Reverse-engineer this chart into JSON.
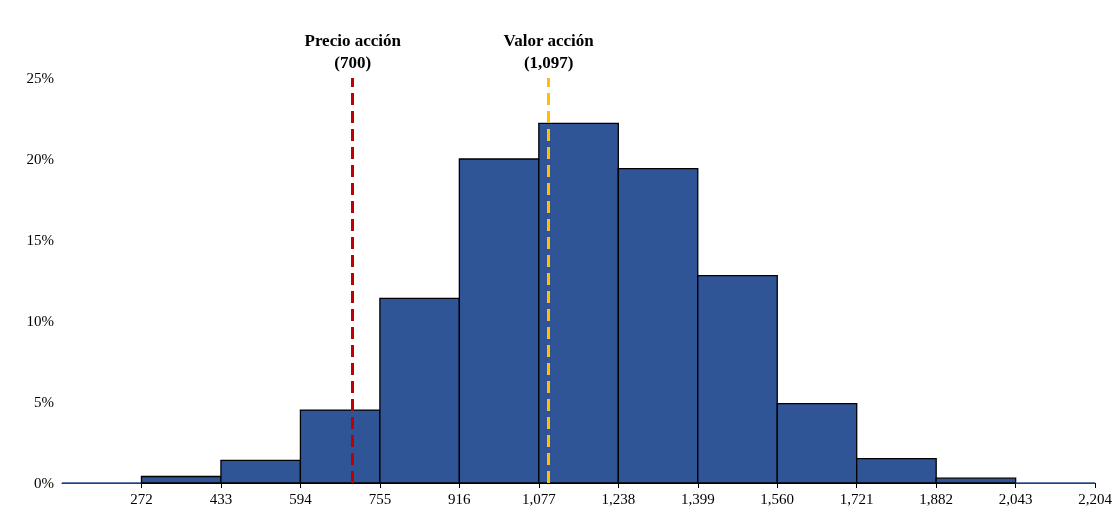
{
  "chart_data": {
    "type": "histogram",
    "bins": [
      111,
      272,
      433,
      594,
      755,
      916,
      1077,
      1238,
      1399,
      1560,
      1721,
      1882,
      2043,
      2204
    ],
    "values": [
      0,
      0.4,
      1.4,
      4.5,
      11.4,
      20.0,
      22.2,
      19.4,
      12.8,
      4.9,
      1.5,
      0.3,
      0
    ],
    "color": "#2f5597",
    "xlim": [
      111,
      2204
    ],
    "xticks": [
      272,
      433,
      594,
      755,
      916,
      {
        "value": 1077,
        "label": "1,077"
      },
      {
        "value": 1238,
        "label": "1,238"
      },
      {
        "value": 1399,
        "label": "1,399"
      },
      {
        "value": 1560,
        "label": "1,560"
      },
      {
        "value": 1721,
        "label": "1,721"
      },
      {
        "value": 1882,
        "label": "1,882"
      },
      {
        "value": 2043,
        "label": "2,043"
      },
      {
        "value": 2204,
        "label": "2,204"
      }
    ],
    "ylim": [
      0,
      25
    ],
    "yticks": [
      {
        "value": 0,
        "label": "0%"
      },
      {
        "value": 5,
        "label": "5%"
      },
      {
        "value": 10,
        "label": "10%"
      },
      {
        "value": 15,
        "label": "15%"
      },
      {
        "value": 20,
        "label": "20%"
      },
      {
        "value": 25,
        "label": "25%"
      }
    ],
    "ref_lines": [
      {
        "axis": "x",
        "value": 700,
        "label": "Precio acción (700)",
        "color": "#c00000",
        "line_style": "dashed"
      },
      {
        "axis": "x",
        "value": 1097,
        "label": "Valor acción (1,097)",
        "color": "#ffc000",
        "line_style": "dashed"
      }
    ],
    "grid": false
  }
}
